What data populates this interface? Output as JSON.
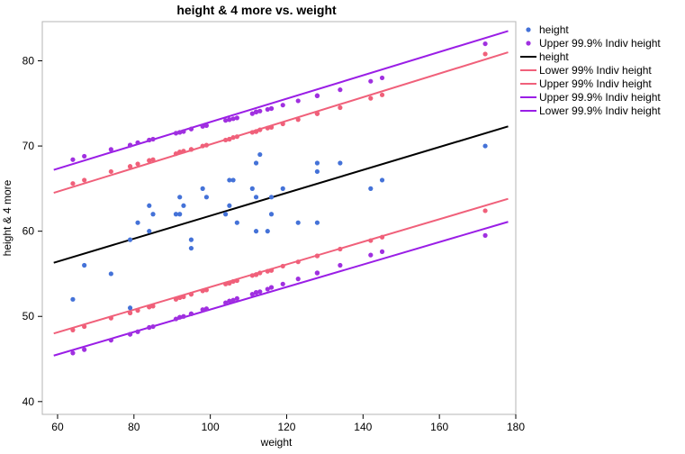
{
  "chart_data": {
    "type": "scatter",
    "title": "height & 4 more vs. weight",
    "xlabel": "weight",
    "ylabel": "height & 4 more",
    "xlim": [
      56,
      180
    ],
    "ylim": [
      38.5,
      84.6
    ],
    "xticks": [
      60,
      80,
      100,
      120,
      140,
      160,
      180
    ],
    "yticks": [
      40,
      50,
      60,
      70,
      80
    ],
    "grid": false,
    "legend_position": "right",
    "legend": [
      {
        "label": "height",
        "kind": "marker",
        "color": "#4472d8"
      },
      {
        "label": "Upper 99.9% Indiv height",
        "kind": "marker",
        "color": "#a030e0"
      },
      {
        "label": "height",
        "kind": "line",
        "color": "#000000"
      },
      {
        "label": "Lower 99% Indiv height",
        "kind": "line",
        "color": "#f0607a"
      },
      {
        "label": "Upper 99% Indiv height",
        "kind": "line",
        "color": "#f0607a"
      },
      {
        "label": "Upper 99.9% Indiv height",
        "kind": "line",
        "color": "#9a1ee6"
      },
      {
        "label": "Lower 99.9% Indiv height",
        "kind": "line",
        "color": "#9a1ee6"
      }
    ],
    "points": {
      "height": {
        "color": "#4472d8",
        "x": [
          64,
          67,
          74,
          79,
          79,
          81,
          84,
          84,
          85,
          91,
          92,
          92,
          93,
          95,
          95,
          98,
          99,
          104,
          105,
          105,
          106,
          107,
          111,
          112,
          112,
          112,
          113,
          115,
          116,
          116,
          119,
          123,
          128,
          128,
          128,
          134,
          142,
          145,
          172
        ],
        "y": [
          52,
          56,
          55,
          51,
          59,
          61,
          60,
          63,
          62,
          62,
          62,
          64,
          63,
          59,
          58,
          65,
          64,
          62,
          63,
          66,
          66,
          61,
          65,
          64,
          68,
          60,
          69,
          60,
          62,
          64,
          65,
          61,
          67,
          68,
          61,
          68,
          65,
          66,
          70
        ]
      },
      "upper_99_9_points": {
        "color": "#a030e0",
        "x": [
          64,
          67,
          74,
          79,
          79,
          81,
          84,
          84,
          85,
          91,
          92,
          92,
          93,
          95,
          95,
          98,
          99,
          104,
          105,
          105,
          106,
          107,
          111,
          112,
          112,
          112,
          113,
          115,
          116,
          116,
          119,
          123,
          128,
          128,
          128,
          134,
          142,
          145,
          172
        ],
        "y": [
          68.4,
          68.8,
          69.6,
          70.1,
          70.1,
          70.4,
          70.7,
          70.7,
          70.8,
          71.5,
          71.6,
          71.6,
          71.7,
          72.0,
          72.0,
          72.3,
          72.4,
          73.0,
          73.1,
          73.1,
          73.2,
          73.3,
          73.8,
          74.0,
          74.0,
          74.0,
          74.1,
          74.3,
          74.4,
          74.4,
          74.8,
          75.3,
          75.9,
          75.9,
          75.9,
          76.6,
          77.6,
          78.0,
          82.0
        ]
      },
      "lower_99_9_points": {
        "color": "#a030e0",
        "x": [
          64,
          67,
          74,
          79,
          79,
          81,
          84,
          84,
          85,
          91,
          92,
          92,
          93,
          95,
          95,
          98,
          99,
          104,
          105,
          105,
          106,
          107,
          111,
          112,
          112,
          112,
          113,
          115,
          116,
          116,
          119,
          123,
          128,
          128,
          128,
          134,
          142,
          145,
          172
        ],
        "y": [
          45.7,
          46.1,
          47.2,
          47.9,
          47.9,
          48.2,
          48.7,
          48.7,
          48.8,
          49.7,
          49.9,
          49.9,
          50.0,
          50.3,
          50.3,
          50.8,
          50.9,
          51.6,
          51.8,
          51.8,
          51.9,
          52.1,
          52.6,
          52.8,
          52.8,
          52.8,
          52.9,
          53.2,
          53.4,
          53.4,
          53.8,
          54.4,
          55.1,
          55.1,
          55.1,
          56.0,
          57.2,
          57.6,
          59.5
        ]
      },
      "upper_99_points": {
        "color": "#f0607a",
        "x": [
          64,
          67,
          74,
          79,
          79,
          81,
          84,
          84,
          85,
          91,
          92,
          92,
          93,
          95,
          95,
          98,
          99,
          104,
          105,
          105,
          106,
          107,
          111,
          112,
          112,
          112,
          113,
          115,
          116,
          116,
          119,
          123,
          128,
          128,
          128,
          134,
          142,
          145,
          172
        ],
        "y": [
          65.6,
          66.0,
          67.0,
          67.6,
          67.6,
          67.9,
          68.3,
          68.3,
          68.4,
          69.1,
          69.3,
          69.3,
          69.4,
          69.6,
          69.6,
          70.0,
          70.1,
          70.7,
          70.8,
          70.8,
          71.0,
          71.1,
          71.6,
          71.7,
          71.7,
          71.7,
          71.9,
          72.1,
          72.2,
          72.2,
          72.6,
          73.1,
          73.8,
          73.8,
          73.8,
          74.5,
          75.6,
          76.0,
          80.8
        ]
      },
      "lower_99_points": {
        "color": "#f0607a",
        "x": [
          64,
          67,
          74,
          79,
          79,
          81,
          84,
          84,
          85,
          91,
          92,
          92,
          93,
          95,
          95,
          98,
          99,
          104,
          105,
          105,
          106,
          107,
          111,
          112,
          112,
          112,
          113,
          115,
          116,
          116,
          119,
          123,
          128,
          128,
          128,
          134,
          142,
          145,
          172
        ],
        "y": [
          48.4,
          48.8,
          49.8,
          50.4,
          50.4,
          50.7,
          51.1,
          51.1,
          51.2,
          52.0,
          52.2,
          52.2,
          52.3,
          52.6,
          52.6,
          53.0,
          53.1,
          53.8,
          53.9,
          53.9,
          54.1,
          54.2,
          54.8,
          54.9,
          54.9,
          54.9,
          55.1,
          55.3,
          55.4,
          55.4,
          55.9,
          56.4,
          57.1,
          57.1,
          57.1,
          57.9,
          58.9,
          59.3,
          62.4
        ]
      }
    },
    "lines": {
      "height": {
        "color": "#000000",
        "x": [
          59,
          178
        ],
        "y": [
          56.3,
          72.3
        ]
      },
      "upper_99_9": {
        "color": "#9a1ee6",
        "x": [
          59,
          178
        ],
        "y": [
          67.2,
          83.5
        ]
      },
      "upper_99": {
        "color": "#f0607a",
        "x": [
          59,
          178
        ],
        "y": [
          64.5,
          81.0
        ]
      },
      "lower_99": {
        "color": "#f0607a",
        "x": [
          59,
          178
        ],
        "y": [
          48.0,
          63.8
        ]
      },
      "lower_99_9": {
        "color": "#9a1ee6",
        "x": [
          59,
          178
        ],
        "y": [
          45.4,
          61.1
        ]
      }
    }
  }
}
